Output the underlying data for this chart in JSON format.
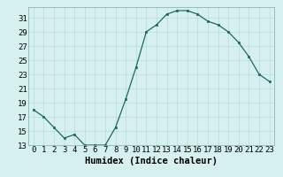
{
  "x": [
    0,
    1,
    2,
    3,
    4,
    5,
    6,
    7,
    8,
    9,
    10,
    11,
    12,
    13,
    14,
    15,
    16,
    17,
    18,
    19,
    20,
    21,
    22,
    23
  ],
  "y": [
    18,
    17,
    15.5,
    14,
    14.5,
    13,
    13,
    13,
    15.5,
    19.5,
    24,
    29,
    30,
    31.5,
    32,
    32,
    31.5,
    30.5,
    30,
    29,
    27.5,
    25.5,
    23,
    22
  ],
  "line_color": "#1a6b5a",
  "marker_color": "#1a6b5a",
  "bg_color": "#d6f0f0",
  "grid_color": "#b8dada",
  "xlabel": "Humidex (Indice chaleur)",
  "ylim": [
    13,
    32
  ],
  "yticks": [
    13,
    15,
    17,
    19,
    21,
    23,
    25,
    27,
    29,
    31
  ],
  "xticks": [
    0,
    1,
    2,
    3,
    4,
    5,
    6,
    7,
    8,
    9,
    10,
    11,
    12,
    13,
    14,
    15,
    16,
    17,
    18,
    19,
    20,
    21,
    22,
    23
  ],
  "font_size": 6.5,
  "label_font_size": 7.5
}
